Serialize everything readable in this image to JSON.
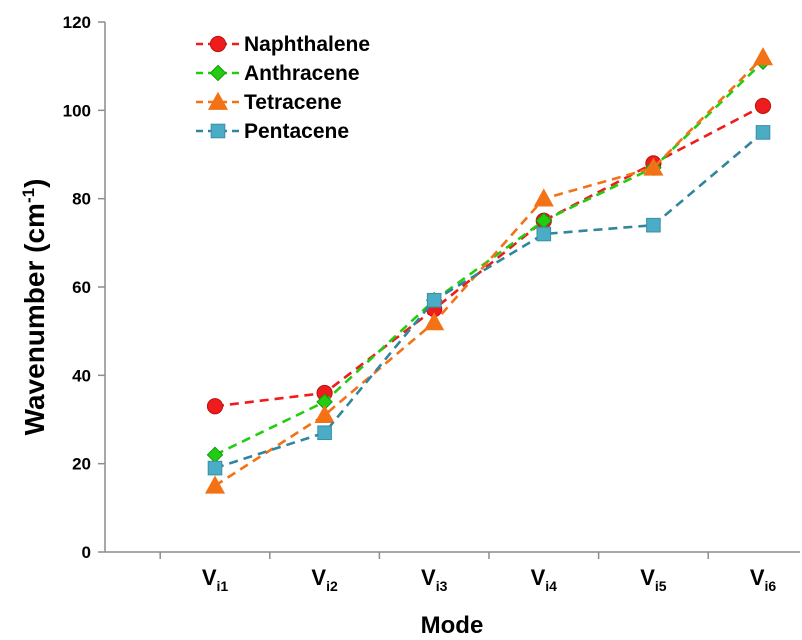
{
  "chart_data": {
    "type": "line",
    "categories": [
      {
        "base": "V",
        "sub": "i1"
      },
      {
        "base": "V",
        "sub": "i2"
      },
      {
        "base": "V",
        "sub": "i3"
      },
      {
        "base": "V",
        "sub": "i4"
      },
      {
        "base": "V",
        "sub": "i5"
      },
      {
        "base": "V",
        "sub": "i6"
      }
    ],
    "series": [
      {
        "name": "Naphthalene",
        "values": [
          33,
          36,
          55,
          75,
          88,
          101
        ],
        "color": "#ee1c1c",
        "marker": "circle"
      },
      {
        "name": "Anthracene",
        "values": [
          22,
          34,
          57,
          75,
          87,
          111
        ],
        "color": "#22cc11",
        "marker": "diamond"
      },
      {
        "name": "Tetracene",
        "values": [
          15,
          31,
          52,
          80,
          87,
          112
        ],
        "color": "#f47216",
        "marker": "triangle"
      },
      {
        "name": "Pentacene",
        "values": [
          19,
          27,
          57,
          72,
          74,
          95
        ],
        "color": "#4bacc6",
        "marker": "square",
        "line_color": "#31859c"
      }
    ],
    "xlabel": "Mode",
    "ylabel": {
      "text": "Wavenumber (cm",
      "sup": "-1",
      "close": ")"
    },
    "ylim": [
      0,
      120
    ],
    "yticks": [
      "0",
      "20",
      "40",
      "60",
      "80",
      "100",
      "120"
    ],
    "grid": false,
    "legend_position": "top-left",
    "line_style": "dashed"
  }
}
